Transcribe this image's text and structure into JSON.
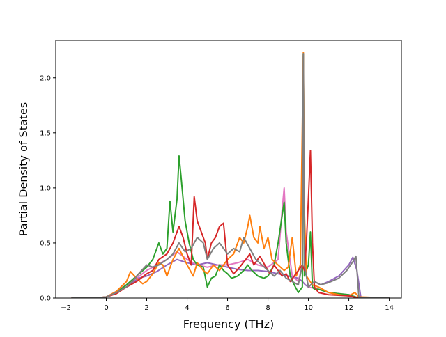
{
  "chart_data": {
    "type": "line",
    "title": "",
    "xlabel": "Frequency (THz)",
    "ylabel": "Partial Density of States",
    "xlim": [
      -2.5,
      14.6
    ],
    "ylim": [
      0,
      2.34
    ],
    "xticks": [
      -2,
      0,
      2,
      4,
      6,
      8,
      10,
      12,
      14
    ],
    "yticks": [
      0.0,
      0.5,
      1.0,
      1.5,
      2.0
    ],
    "xtick_labels": [
      "−2",
      "0",
      "2",
      "4",
      "6",
      "8",
      "10",
      "12",
      "14"
    ],
    "ytick_labels": [
      "0.0",
      "0.5",
      "1.0",
      "1.5",
      "2.0"
    ],
    "grid": false,
    "legend": "none",
    "series": [
      {
        "color": "#9467bd",
        "x": [
          -1.7,
          -0.5,
          0.0,
          0.5,
          1.0,
          1.3,
          1.6,
          2.0,
          2.5,
          3.0,
          3.5,
          4.0,
          4.5,
          5.0,
          5.5,
          6.0,
          6.5,
          7.0,
          7.5,
          8.0,
          8.5,
          9.0,
          9.5,
          9.7,
          9.85,
          10.0,
          10.3,
          10.6,
          11.0,
          11.5,
          12.0,
          12.2,
          12.4,
          12.6,
          14.0
        ],
        "y": [
          0,
          0,
          0.01,
          0.05,
          0.1,
          0.14,
          0.18,
          0.2,
          0.24,
          0.3,
          0.35,
          0.32,
          0.3,
          0.32,
          0.3,
          0.28,
          0.26,
          0.25,
          0.25,
          0.24,
          0.22,
          0.2,
          0.18,
          0.15,
          0.12,
          0.1,
          0.15,
          0.12,
          0.15,
          0.2,
          0.3,
          0.37,
          0.25,
          0.0,
          0
        ]
      },
      {
        "color": "#e377c2",
        "x": [
          -1.7,
          -0.5,
          0.0,
          0.5,
          1.0,
          1.5,
          2.0,
          2.5,
          3.0,
          3.5,
          4.0,
          4.5,
          5.0,
          5.5,
          6.0,
          6.5,
          7.0,
          7.5,
          8.0,
          8.5,
          8.7,
          8.8,
          8.9,
          9.2,
          9.5,
          9.7,
          9.75,
          9.8,
          10.0,
          10.5,
          11.0,
          12.0,
          12.5,
          14.0
        ],
        "y": [
          0,
          0,
          0.01,
          0.06,
          0.12,
          0.18,
          0.25,
          0.3,
          0.35,
          0.42,
          0.35,
          0.3,
          0.28,
          0.3,
          0.3,
          0.32,
          0.35,
          0.3,
          0.28,
          0.35,
          0.8,
          1.0,
          0.6,
          0.2,
          0.15,
          0.3,
          2.2,
          0.3,
          0.1,
          0.08,
          0.05,
          0.03,
          0.0,
          0
        ]
      },
      {
        "color": "#2ca02c",
        "x": [
          -1.7,
          -0.5,
          0.0,
          0.5,
          1.0,
          1.5,
          2.0,
          2.3,
          2.6,
          2.8,
          3.0,
          3.15,
          3.3,
          3.5,
          3.6,
          3.7,
          3.9,
          4.1,
          4.3,
          4.5,
          4.8,
          5.0,
          5.2,
          5.4,
          5.6,
          5.8,
          6.0,
          6.2,
          6.5,
          6.8,
          7.0,
          7.2,
          7.5,
          7.8,
          8.0,
          8.3,
          8.5,
          8.7,
          8.8,
          8.9,
          9.1,
          9.3,
          9.5,
          9.7,
          9.75,
          9.8,
          10.0,
          10.1,
          10.2,
          10.3,
          10.5,
          11.0,
          12.0,
          12.5,
          14.0
        ],
        "y": [
          0,
          0,
          0.01,
          0.05,
          0.12,
          0.2,
          0.28,
          0.35,
          0.5,
          0.4,
          0.45,
          0.88,
          0.6,
          0.9,
          1.29,
          1.1,
          0.7,
          0.5,
          0.35,
          0.3,
          0.28,
          0.1,
          0.18,
          0.2,
          0.3,
          0.25,
          0.22,
          0.18,
          0.2,
          0.25,
          0.3,
          0.25,
          0.2,
          0.18,
          0.2,
          0.3,
          0.5,
          0.75,
          0.87,
          0.5,
          0.2,
          0.12,
          0.05,
          0.1,
          2.22,
          0.2,
          0.3,
          0.6,
          0.1,
          0.08,
          0.08,
          0.05,
          0.03,
          0.0,
          0
        ]
      },
      {
        "color": "#ff7f0e",
        "x": [
          -1.7,
          -0.5,
          0.0,
          0.5,
          1.0,
          1.2,
          1.5,
          1.8,
          2.0,
          2.3,
          2.6,
          2.8,
          3.0,
          3.3,
          3.6,
          4.0,
          4.3,
          4.5,
          4.8,
          5.0,
          5.3,
          5.6,
          6.0,
          6.3,
          6.6,
          6.8,
          7.0,
          7.1,
          7.3,
          7.5,
          7.6,
          7.8,
          8.0,
          8.2,
          8.5,
          8.8,
          9.0,
          9.2,
          9.4,
          9.6,
          9.7,
          9.75,
          9.8,
          9.9,
          10.2,
          10.5,
          11.0,
          11.5,
          12.0,
          12.3,
          12.5,
          14.0
        ],
        "y": [
          0,
          0,
          0.01,
          0.06,
          0.15,
          0.24,
          0.18,
          0.13,
          0.15,
          0.22,
          0.32,
          0.3,
          0.2,
          0.35,
          0.45,
          0.3,
          0.2,
          0.32,
          0.25,
          0.22,
          0.3,
          0.25,
          0.35,
          0.4,
          0.55,
          0.5,
          0.65,
          0.75,
          0.55,
          0.5,
          0.65,
          0.45,
          0.55,
          0.35,
          0.3,
          0.25,
          0.28,
          0.55,
          0.2,
          0.3,
          1.6,
          2.23,
          0.8,
          0.2,
          0.12,
          0.1,
          0.05,
          0.03,
          0.02,
          0.05,
          0.01,
          0
        ]
      },
      {
        "color": "#d62728",
        "x": [
          -1.7,
          -0.5,
          0.0,
          0.5,
          1.0,
          1.5,
          2.0,
          2.3,
          2.6,
          3.0,
          3.3,
          3.6,
          3.8,
          4.0,
          4.2,
          4.35,
          4.5,
          4.7,
          4.9,
          5.0,
          5.2,
          5.4,
          5.6,
          5.8,
          6.0,
          6.3,
          6.6,
          6.9,
          7.1,
          7.3,
          7.6,
          7.9,
          8.1,
          8.3,
          8.5,
          8.7,
          8.9,
          9.1,
          9.3,
          9.5,
          9.7,
          9.8,
          9.9,
          10.0,
          10.1,
          10.2,
          10.3,
          10.5,
          11.0,
          12.0,
          12.5,
          14.0
        ],
        "y": [
          0,
          0,
          0.01,
          0.04,
          0.1,
          0.15,
          0.22,
          0.25,
          0.35,
          0.4,
          0.5,
          0.65,
          0.55,
          0.4,
          0.3,
          0.92,
          0.7,
          0.6,
          0.5,
          0.35,
          0.5,
          0.55,
          0.65,
          0.68,
          0.3,
          0.22,
          0.28,
          0.35,
          0.4,
          0.3,
          0.38,
          0.28,
          0.22,
          0.3,
          0.25,
          0.2,
          0.22,
          0.15,
          0.2,
          0.25,
          0.3,
          0.25,
          0.5,
          0.9,
          1.34,
          0.5,
          0.1,
          0.05,
          0.03,
          0.02,
          0.0,
          0
        ]
      },
      {
        "color": "#7f7f7f",
        "x": [
          -1.7,
          -0.5,
          0.0,
          0.5,
          1.0,
          1.3,
          1.6,
          2.0,
          2.3,
          2.6,
          3.0,
          3.3,
          3.6,
          3.9,
          4.2,
          4.5,
          4.8,
          5.0,
          5.3,
          5.6,
          6.0,
          6.3,
          6.6,
          6.8,
          7.1,
          7.4,
          7.7,
          8.0,
          8.3,
          8.6,
          8.9,
          9.2,
          9.5,
          9.7,
          9.75,
          9.8,
          10.0,
          10.3,
          10.6,
          11.0,
          11.5,
          11.9,
          12.2,
          12.35,
          12.5,
          14.0
        ],
        "y": [
          0,
          0,
          0.01,
          0.05,
          0.1,
          0.15,
          0.22,
          0.3,
          0.28,
          0.3,
          0.35,
          0.4,
          0.5,
          0.42,
          0.45,
          0.55,
          0.5,
          0.35,
          0.45,
          0.5,
          0.4,
          0.45,
          0.42,
          0.55,
          0.45,
          0.35,
          0.3,
          0.25,
          0.2,
          0.25,
          0.18,
          0.15,
          0.12,
          0.3,
          2.22,
          0.3,
          0.1,
          0.15,
          0.12,
          0.14,
          0.18,
          0.25,
          0.33,
          0.38,
          0.0,
          0
        ]
      }
    ]
  }
}
